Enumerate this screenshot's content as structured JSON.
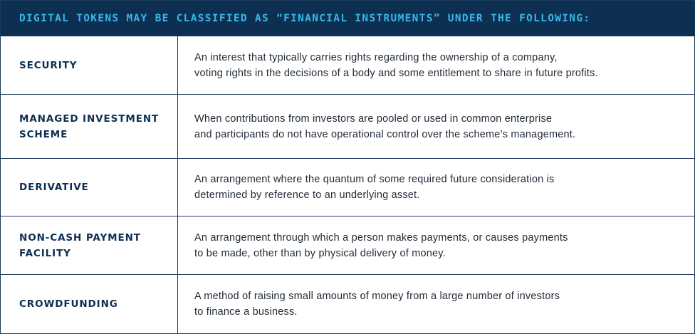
{
  "header": {
    "title": "DIGITAL TOKENS MAY BE CLASSIFIED AS “FINANCIAL INSTRUMENTS” UNDER THE FOLLOWING:"
  },
  "rows": [
    {
      "term_lines": [
        "SECURITY"
      ],
      "definition_lines": [
        "An interest that typically carries rights regarding the ownership of a company,",
        "voting rights in the decisions of a body and some entitlement to share in future profits."
      ]
    },
    {
      "term_lines": [
        "MANAGED INVESTMENT",
        "SCHEME"
      ],
      "definition_lines": [
        "When contributions from investors are pooled or used in common enterprise",
        "and participants do not have operational control over the scheme’s management."
      ]
    },
    {
      "term_lines": [
        "DERIVATIVE"
      ],
      "definition_lines": [
        "An arrangement where the quantum of some required future consideration is",
        "determined by reference to an underlying asset."
      ]
    },
    {
      "term_lines": [
        "NON-CASH PAYMENT",
        "FACILITY"
      ],
      "definition_lines": [
        "An arrangement through which a person makes payments, or causes payments",
        "to be made, other than by physical delivery of money."
      ]
    },
    {
      "term_lines": [
        "CROWDFUNDING"
      ],
      "definition_lines": [
        "A method of raising small amounts of money from a large number of investors",
        "to finance a business."
      ]
    }
  ],
  "colors": {
    "header_background": "#0d2f52",
    "header_text": "#38b8e8",
    "term_text": "#0d2f52",
    "body_text": "#1f2a36",
    "border": "#1d3a5c"
  }
}
